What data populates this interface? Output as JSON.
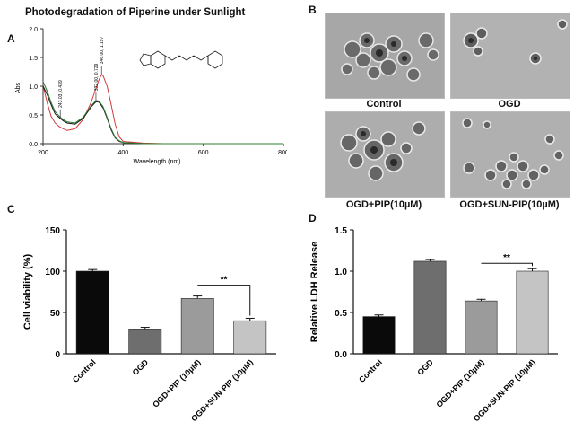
{
  "panels": {
    "a": {
      "label": "A",
      "title": "Photodegradation of Piperine under Sunlight",
      "ylabel": "Abs",
      "xlabel": "Wavelength (nm)",
      "x_ticks": [
        "200",
        "400",
        "600",
        "800"
      ],
      "y_ticks": [
        "0.0",
        "0.5",
        "1.0",
        "1.5",
        "2.0"
      ],
      "annotations": [
        "243.03, 0.439",
        "332.00, 0.729",
        "346.00, 1.197"
      ]
    },
    "b": {
      "label": "B",
      "images": [
        {
          "caption": "Control"
        },
        {
          "caption": "OGD"
        },
        {
          "caption": "OGD+PIP(10µM)"
        },
        {
          "caption": "OGD+SUN-PIP(10µM)"
        }
      ]
    },
    "c": {
      "label": "C"
    },
    "d": {
      "label": "D"
    }
  },
  "colors": {
    "red": "#d23b3b",
    "green": "#2e7d32",
    "black": "#111111"
  },
  "chart_data": [
    {
      "id": "A",
      "type": "line",
      "title": "Photodegradation of Piperine under Sunlight",
      "xlabel": "Wavelength (nm)",
      "ylabel": "Abs",
      "xlim": [
        200,
        800
      ],
      "ylim": [
        0,
        2
      ],
      "grid": false,
      "series": [
        {
          "color": "#d23b3b",
          "x": [
            200,
            210,
            220,
            230,
            240,
            250,
            260,
            280,
            300,
            320,
            330,
            340,
            346,
            350,
            360,
            370,
            380,
            390,
            400,
            450,
            500,
            600,
            700,
            800
          ],
          "y": [
            1.02,
            0.72,
            0.48,
            0.36,
            0.3,
            0.26,
            0.23,
            0.26,
            0.42,
            0.72,
            0.92,
            1.12,
            1.2,
            1.18,
            1.0,
            0.68,
            0.34,
            0.12,
            0.04,
            0.01,
            0.0,
            0.0,
            0.0,
            0.0
          ]
        },
        {
          "color": "#111111",
          "x": [
            200,
            210,
            220,
            230,
            243,
            250,
            260,
            280,
            300,
            320,
            332,
            340,
            350,
            360,
            370,
            380,
            390,
            400,
            450,
            500,
            600,
            700,
            800
          ],
          "y": [
            1.0,
            0.86,
            0.68,
            0.52,
            0.44,
            0.4,
            0.36,
            0.34,
            0.44,
            0.64,
            0.73,
            0.72,
            0.62,
            0.44,
            0.24,
            0.1,
            0.04,
            0.02,
            0.0,
            0.0,
            0.0,
            0.0,
            0.0
          ]
        },
        {
          "color": "#2e7d32",
          "x": [
            200,
            210,
            220,
            230,
            243,
            250,
            260,
            280,
            300,
            320,
            332,
            340,
            350,
            360,
            370,
            380,
            390,
            400,
            450,
            500,
            600,
            700,
            800
          ],
          "y": [
            1.08,
            0.92,
            0.72,
            0.56,
            0.46,
            0.42,
            0.38,
            0.36,
            0.46,
            0.66,
            0.75,
            0.74,
            0.64,
            0.46,
            0.26,
            0.11,
            0.05,
            0.02,
            0.0,
            0.0,
            0.0,
            0.0,
            0.0
          ]
        }
      ]
    },
    {
      "id": "C",
      "type": "bar",
      "ylabel": "Cell viability (%)",
      "ylim": [
        0,
        150
      ],
      "y_ticks": [
        0,
        50,
        100,
        150
      ],
      "categories": [
        "Control",
        "OGD",
        "OGD+PIP (10µM)",
        "OGD+SUN-PIP (10µM)"
      ],
      "values": [
        100,
        30,
        67,
        40
      ],
      "errors": [
        2,
        2,
        3,
        3
      ],
      "bar_colors": [
        "#0a0a0a",
        "#6e6e6e",
        "#9b9b9b",
        "#c4c4c4"
      ],
      "significance": {
        "between": [
          2,
          3
        ],
        "label": "**"
      }
    },
    {
      "id": "D",
      "type": "bar",
      "ylabel": "Relative LDH Release",
      "ylim": [
        0,
        1.5
      ],
      "y_ticks": [
        "0.0",
        "0.5",
        "1.0",
        "1.5"
      ],
      "categories": [
        "Control",
        "OGD",
        "OGD+PIP (10µM)",
        "OGD+SUN-PIP (10µM)"
      ],
      "values": [
        0.45,
        1.12,
        0.64,
        1.0
      ],
      "errors": [
        0.02,
        0.02,
        0.02,
        0.03
      ],
      "bar_colors": [
        "#0a0a0a",
        "#6e6e6e",
        "#9b9b9b",
        "#c4c4c4"
      ],
      "significance": {
        "between": [
          2,
          3
        ],
        "label": "**"
      }
    }
  ]
}
